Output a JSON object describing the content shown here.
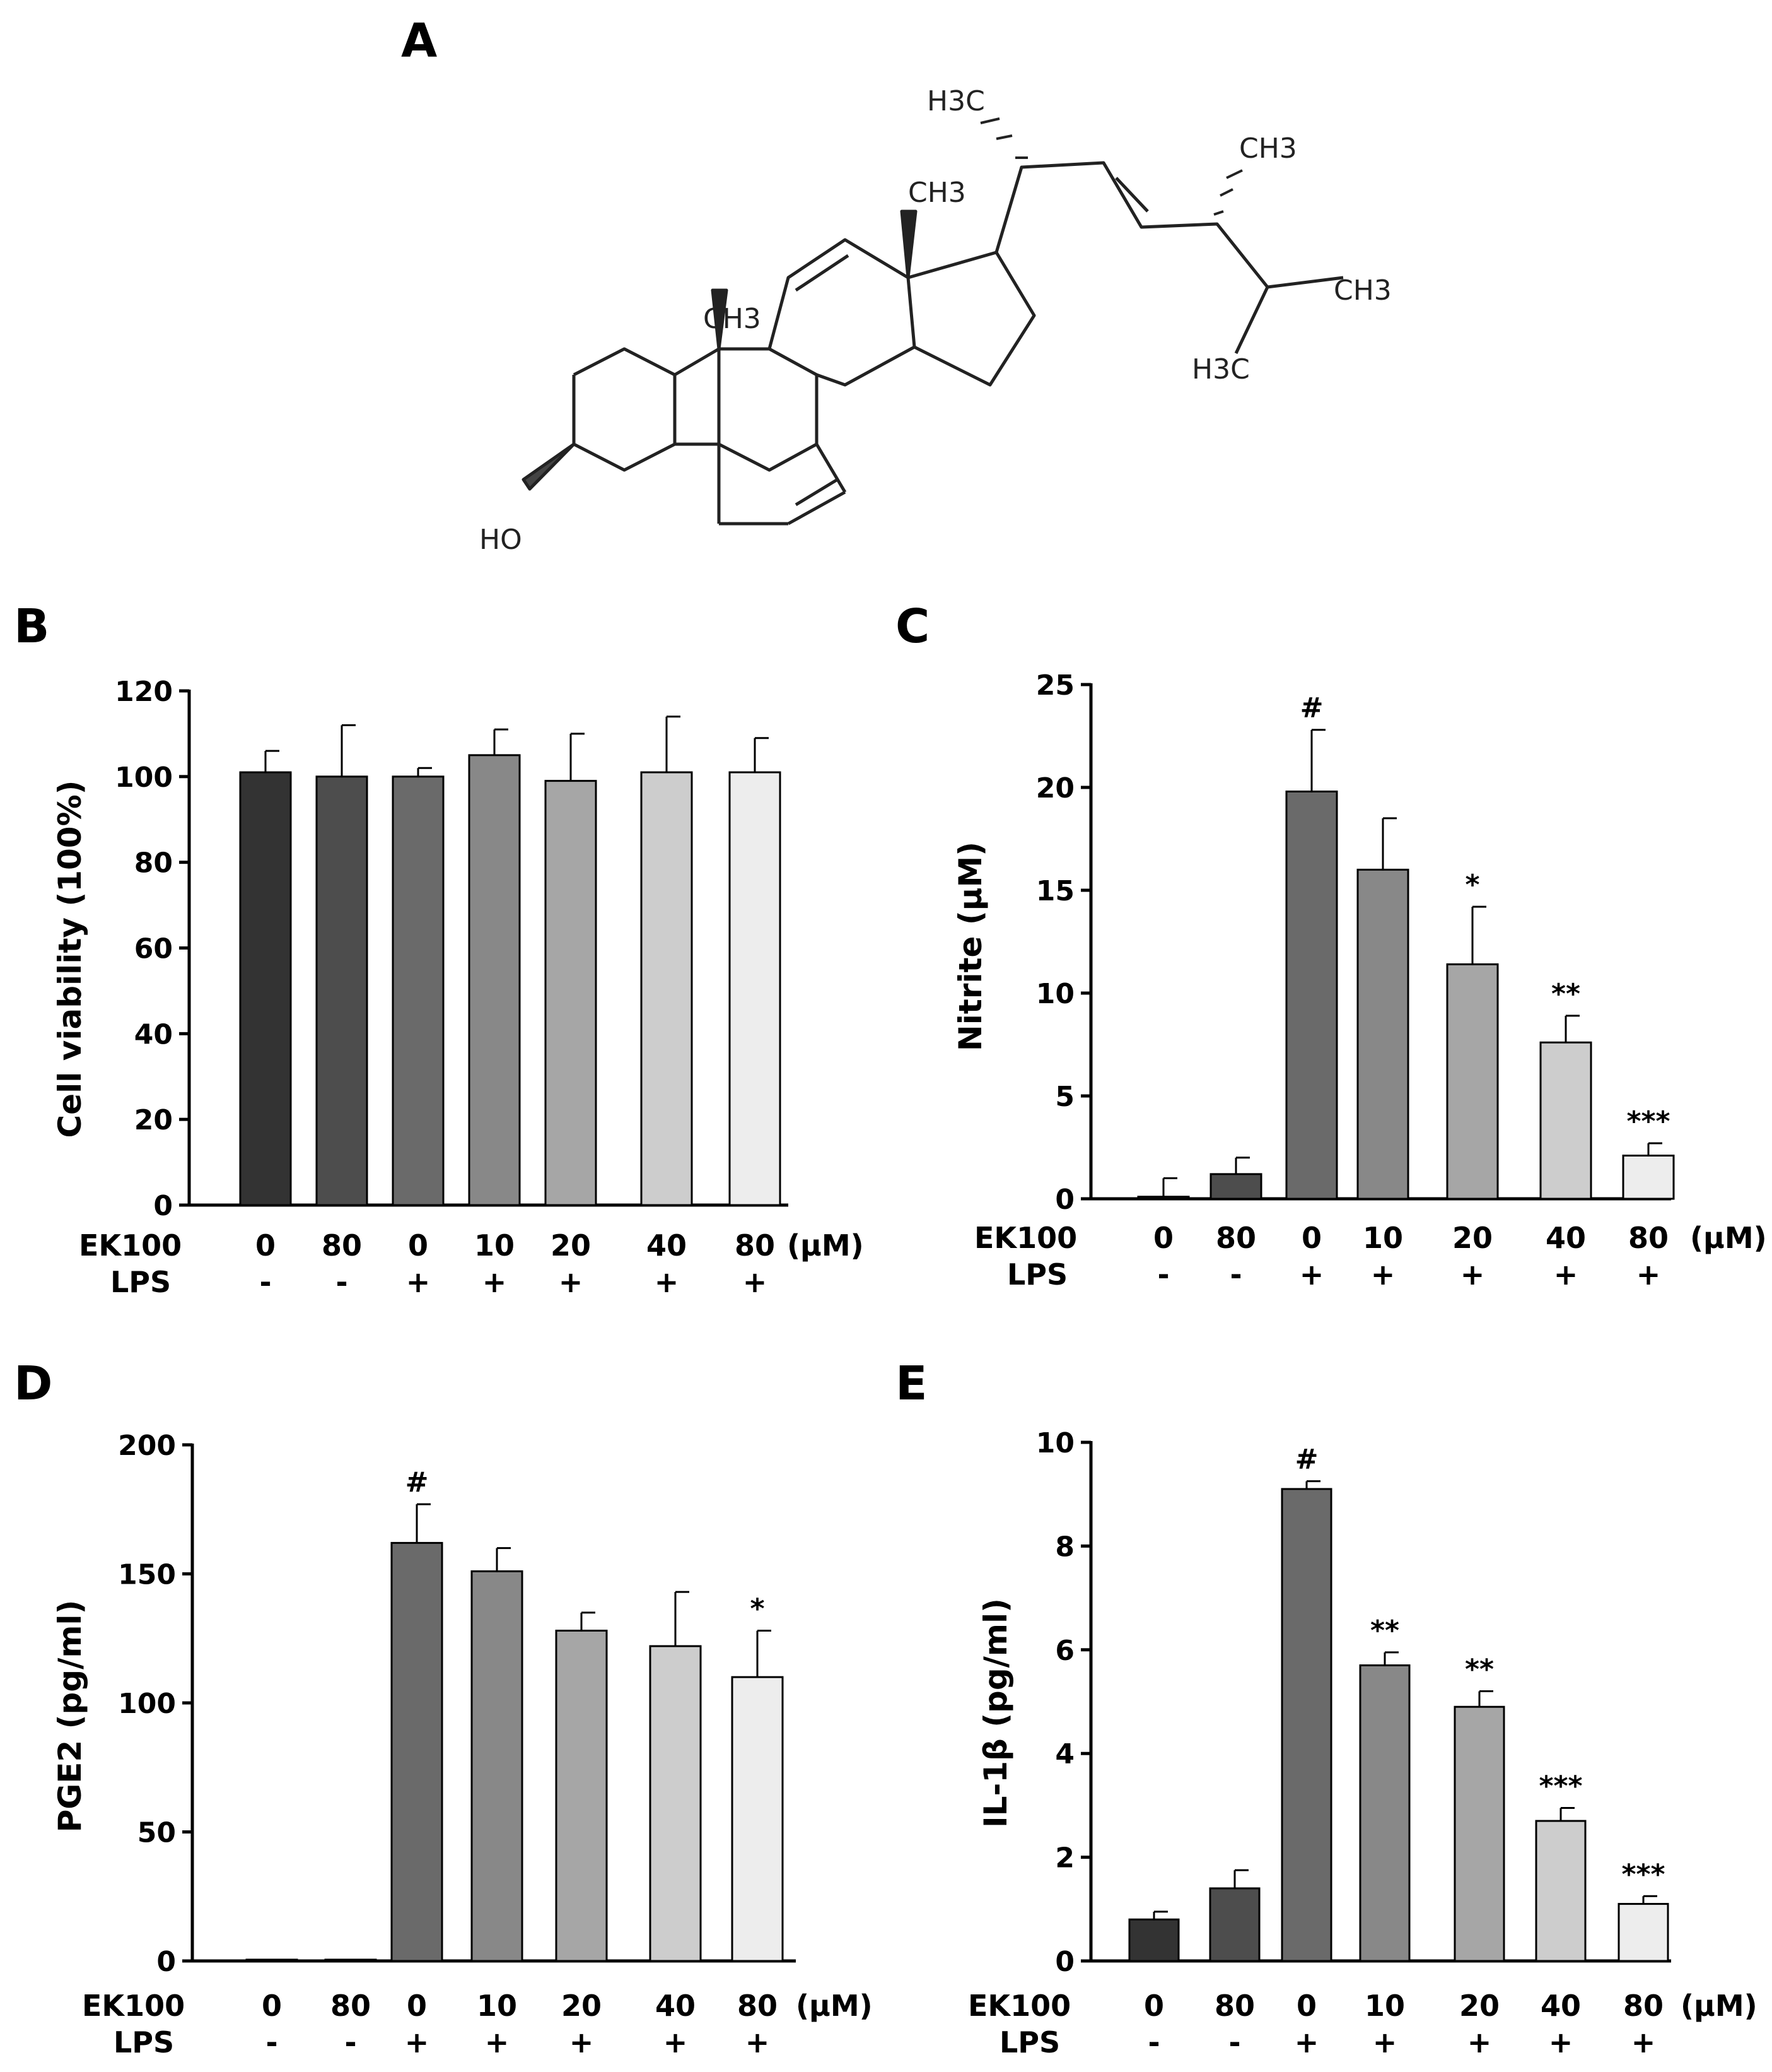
{
  "panels": {
    "a": "A",
    "b": "B",
    "c": "C",
    "d": "D",
    "e": "E"
  },
  "structure": {
    "labels": [
      "H3C",
      "CH3",
      "CH3",
      "CH3",
      "CH3",
      "H3C",
      "HO"
    ]
  },
  "chart_data": [
    {
      "id": "B",
      "type": "bar",
      "ylabel": "Cell viability (100%)",
      "ylim": [
        0,
        120
      ],
      "yticks": [
        0,
        20,
        40,
        60,
        80,
        100,
        120
      ],
      "row1_label": "EK100",
      "row2_label": "LPS",
      "unit": "(μM)",
      "categories": [
        "0",
        "80",
        "0",
        "10",
        "20",
        "40",
        "80"
      ],
      "lps": [
        "-",
        "-",
        "+",
        "+",
        "+",
        "+",
        "+"
      ],
      "values": [
        101,
        100,
        100,
        105,
        99,
        101,
        101
      ],
      "errors": [
        5,
        12,
        2,
        6,
        11,
        13,
        8
      ],
      "significance": [
        "",
        "",
        "",
        "",
        "",
        "",
        ""
      ],
      "colors": [
        "#333333",
        "#4d4d4d",
        "#6a6a6a",
        "#888888",
        "#a6a6a6",
        "#cdcdcd",
        "#ededed"
      ]
    },
    {
      "id": "C",
      "type": "bar",
      "ylabel": "Nitrite (μM)",
      "ylim": [
        0,
        25
      ],
      "yticks": [
        0,
        5,
        10,
        15,
        20,
        25
      ],
      "row1_label": "EK100",
      "row2_label": "LPS",
      "unit": "(μM)",
      "categories": [
        "0",
        "80",
        "0",
        "10",
        "20",
        "40",
        "80"
      ],
      "lps": [
        "-",
        "-",
        "+",
        "+",
        "+",
        "+",
        "+"
      ],
      "values": [
        0.1,
        1.2,
        19.8,
        16.0,
        11.4,
        7.6,
        2.1
      ],
      "errors": [
        0.9,
        0.8,
        3.0,
        2.5,
        2.8,
        1.3,
        0.6
      ],
      "significance": [
        "",
        "",
        "#",
        "",
        "*",
        "**",
        "***"
      ],
      "colors": [
        "#333333",
        "#4d4d4d",
        "#6a6a6a",
        "#888888",
        "#a6a6a6",
        "#cdcdcd",
        "#ededed"
      ]
    },
    {
      "id": "D",
      "type": "bar",
      "ylabel": "PGE2 (pg/ml)",
      "ylim": [
        0,
        200
      ],
      "yticks": [
        0,
        50,
        100,
        150,
        200
      ],
      "row1_label": "EK100",
      "row2_label": "LPS",
      "unit": "(μM)",
      "categories": [
        "0",
        "80",
        "0",
        "10",
        "20",
        "40",
        "80"
      ],
      "lps": [
        "-",
        "-",
        "+",
        "+",
        "+",
        "+",
        "+"
      ],
      "values": [
        0.5,
        0.5,
        162,
        151,
        128,
        122,
        110
      ],
      "errors": [
        0,
        0,
        15,
        9,
        7,
        21,
        18
      ],
      "significance": [
        "",
        "",
        "#",
        "",
        "",
        "",
        "*"
      ],
      "colors": [
        "#333333",
        "#4d4d4d",
        "#6a6a6a",
        "#888888",
        "#a6a6a6",
        "#cdcdcd",
        "#ededed"
      ]
    },
    {
      "id": "E",
      "type": "bar",
      "ylabel": "IL-1β (pg/ml)",
      "ylim": [
        0,
        10
      ],
      "yticks": [
        0,
        2,
        4,
        6,
        8,
        10
      ],
      "row1_label": "EK100",
      "row2_label": "LPS",
      "unit": "(μM)",
      "categories": [
        "0",
        "80",
        "0",
        "10",
        "20",
        "40",
        "80"
      ],
      "lps": [
        "-",
        "-",
        "+",
        "+",
        "+",
        "+",
        "+"
      ],
      "values": [
        0.8,
        1.4,
        9.1,
        5.7,
        4.9,
        2.7,
        1.1
      ],
      "errors": [
        0.15,
        0.35,
        0.15,
        0.25,
        0.3,
        0.25,
        0.15
      ],
      "significance": [
        "",
        "",
        "#",
        "**",
        "**",
        "***",
        "***"
      ],
      "colors": [
        "#333333",
        "#4d4d4d",
        "#6a6a6a",
        "#888888",
        "#a6a6a6",
        "#cdcdcd",
        "#ededed"
      ]
    }
  ]
}
